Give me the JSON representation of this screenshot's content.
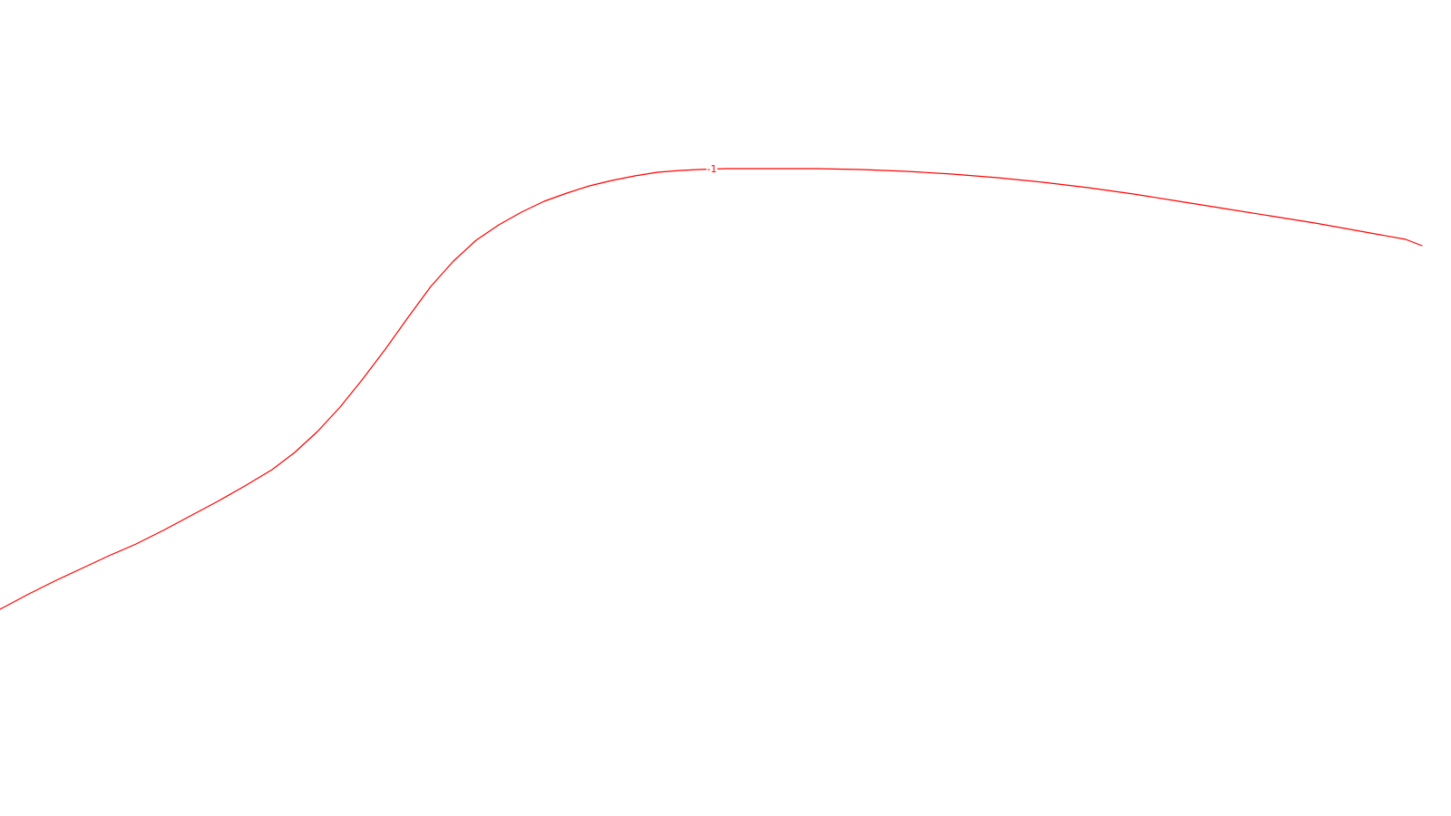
{
  "chart_data": {
    "type": "line",
    "grid": false,
    "legend": "none",
    "series": [
      {
        "name": "-1",
        "color": "#ff0000",
        "points": [
          [
            0,
            672
          ],
          [
            30,
            656
          ],
          [
            60,
            641
          ],
          [
            90,
            627
          ],
          [
            120,
            613
          ],
          [
            150,
            600
          ],
          [
            180,
            585
          ],
          [
            210,
            569
          ],
          [
            240,
            553
          ],
          [
            270,
            536
          ],
          [
            300,
            518
          ],
          [
            325,
            499
          ],
          [
            350,
            476
          ],
          [
            375,
            449
          ],
          [
            400,
            418
          ],
          [
            425,
            385
          ],
          [
            450,
            350
          ],
          [
            475,
            316
          ],
          [
            500,
            288
          ],
          [
            525,
            265
          ],
          [
            550,
            248
          ],
          [
            575,
            234
          ],
          [
            600,
            222
          ],
          [
            625,
            213
          ],
          [
            650,
            205
          ],
          [
            675,
            199
          ],
          [
            700,
            194
          ],
          [
            725,
            190
          ],
          [
            750,
            188
          ],
          [
            770,
            187
          ],
          [
            800,
            186
          ],
          [
            850,
            186
          ],
          [
            900,
            186
          ],
          [
            950,
            187
          ],
          [
            1000,
            189
          ],
          [
            1050,
            192
          ],
          [
            1100,
            196
          ],
          [
            1150,
            201
          ],
          [
            1200,
            207
          ],
          [
            1250,
            214
          ],
          [
            1300,
            222
          ],
          [
            1350,
            230
          ],
          [
            1400,
            238
          ],
          [
            1450,
            246
          ],
          [
            1500,
            255
          ],
          [
            1550,
            264
          ],
          [
            1568,
            271
          ]
        ]
      }
    ],
    "curve_labels": [
      {
        "text": "-1",
        "series": 0,
        "at_x": 785
      }
    ]
  }
}
